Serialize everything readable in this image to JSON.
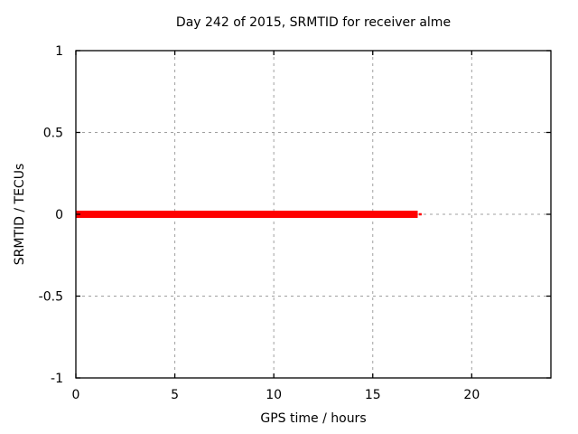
{
  "page": {
    "background": "#ffffff"
  },
  "chart_data": {
    "type": "line",
    "title": "Day 242 of 2015, SRMTID for receiver alme",
    "xlabel": "GPS time / hours",
    "ylabel": "SRMTID / TECUs",
    "xlim": [
      0,
      24
    ],
    "ylim": [
      -1,
      1
    ],
    "xticks": [
      0,
      5,
      10,
      15,
      20
    ],
    "xtick_labels": [
      "0",
      "5",
      "10",
      "15",
      "20"
    ],
    "yticks": [
      -1,
      -0.5,
      0,
      0.5,
      1
    ],
    "ytick_labels": [
      "-1",
      "-0.5",
      "0",
      "0.5",
      "1"
    ],
    "grid": true,
    "grid_style": "dashed",
    "legend_position": "none",
    "series": [
      {
        "name": "SRMTID",
        "color": "#ff0000",
        "description": "constant zero value from 0 h to about 17.3 h, no data afterwards",
        "segments": [
          {
            "x1": 0,
            "x2": 17.27,
            "y": 0,
            "line_width": 8
          },
          {
            "x1": 17.33,
            "x2": 17.47,
            "y": 0,
            "line_width": 2.5
          }
        ]
      }
    ],
    "colors": {
      "axis": "#000000",
      "grid": "#a0a0a0",
      "text": "#000000",
      "series": "#ff0000"
    }
  }
}
